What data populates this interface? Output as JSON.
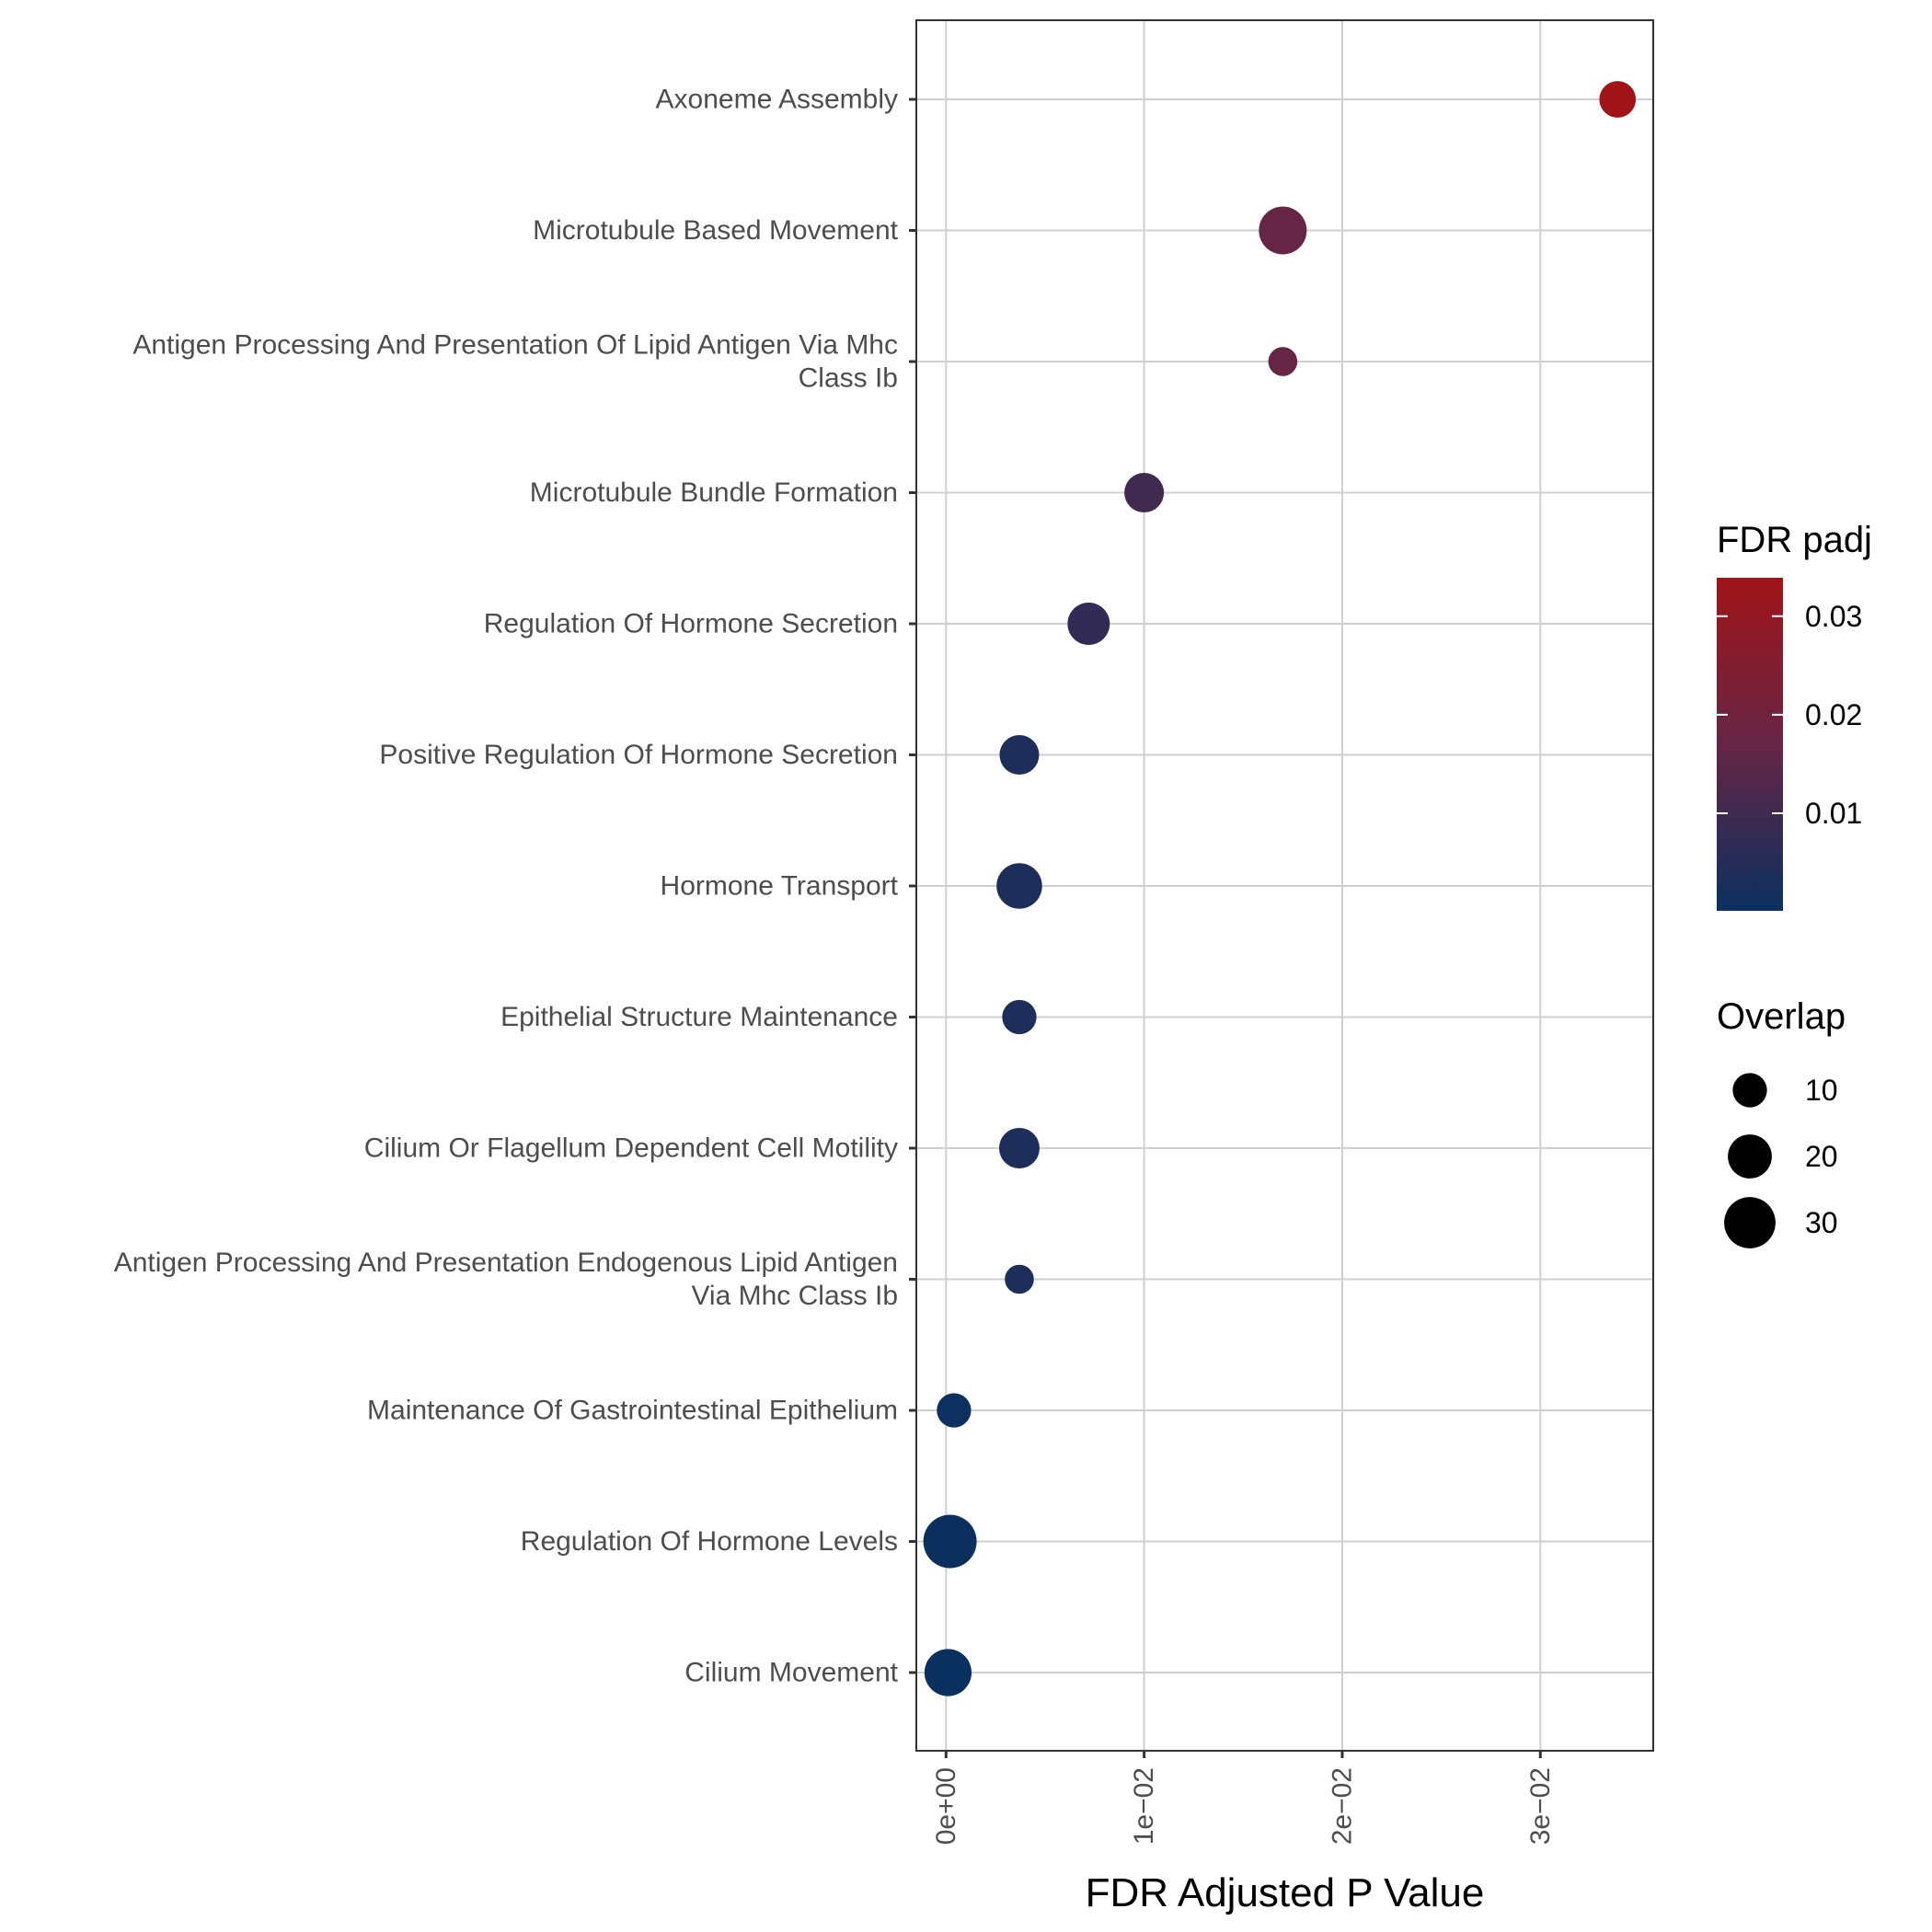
{
  "chart_data": {
    "type": "scatter",
    "xlabel": "FDR Adjusted P Value",
    "ylabel": "",
    "xlim": [
      -0.0015,
      0.0357
    ],
    "x_ticks": [
      {
        "value": 0,
        "label": "0e+00"
      },
      {
        "value": 0.01,
        "label": "1e−02"
      },
      {
        "value": 0.02,
        "label": "2e−02"
      },
      {
        "value": 0.03,
        "label": "3e−02"
      }
    ],
    "grid": true,
    "categories": [
      [
        "Axoneme Assembly"
      ],
      [
        "Microtubule Based Movement"
      ],
      [
        "Antigen Processing And Presentation Of Lipid Antigen Via Mhc",
        "Class Ib"
      ],
      [
        "Microtubule Bundle Formation"
      ],
      [
        "Regulation Of Hormone Secretion"
      ],
      [
        "Positive Regulation Of Hormone Secretion"
      ],
      [
        "Hormone Transport"
      ],
      [
        "Epithelial Structure Maintenance"
      ],
      [
        "Cilium Or Flagellum Dependent Cell Motility"
      ],
      [
        "Antigen Processing And Presentation Endogenous Lipid Antigen",
        "Via Mhc Class Ib"
      ],
      [
        "Maintenance Of Gastrointestinal Epithelium"
      ],
      [
        "Regulation Of Hormone Levels"
      ],
      [
        "Cilium Movement"
      ]
    ],
    "points": [
      {
        "x": 0.0339,
        "overlap": 12,
        "fdr": 0.0339
      },
      {
        "x": 0.017,
        "overlap": 25,
        "fdr": 0.017
      },
      {
        "x": 0.017,
        "overlap": 6,
        "fdr": 0.017
      },
      {
        "x": 0.01,
        "overlap": 15,
        "fdr": 0.01
      },
      {
        "x": 0.0072,
        "overlap": 18,
        "fdr": 0.0072
      },
      {
        "x": 0.0037,
        "overlap": 15,
        "fdr": 0.0037
      },
      {
        "x": 0.0037,
        "overlap": 22,
        "fdr": 0.0037
      },
      {
        "x": 0.0037,
        "overlap": 10,
        "fdr": 0.0037
      },
      {
        "x": 0.0037,
        "overlap": 16,
        "fdr": 0.0037
      },
      {
        "x": 0.0037,
        "overlap": 6,
        "fdr": 0.0037
      },
      {
        "x": 0.0004,
        "overlap": 10,
        "fdr": 0.0004
      },
      {
        "x": 0.0002,
        "overlap": 33,
        "fdr": 0.0002
      },
      {
        "x": 0.0001,
        "overlap": 24,
        "fdr": 0.0001
      }
    ],
    "color_legend": {
      "title": "FDR padj",
      "low": 0.0001,
      "high": 0.0339,
      "low_color": "#0a3060",
      "high_color": "#a01418",
      "ticks": [
        {
          "value": 0.01,
          "label": "0.01"
        },
        {
          "value": 0.02,
          "label": "0.02"
        },
        {
          "value": 0.03,
          "label": "0.03"
        }
      ]
    },
    "size_legend": {
      "title": "Overlap",
      "entries": [
        {
          "value": 10,
          "label": "10"
        },
        {
          "value": 20,
          "label": "20"
        },
        {
          "value": 30,
          "label": "30"
        }
      ]
    }
  }
}
